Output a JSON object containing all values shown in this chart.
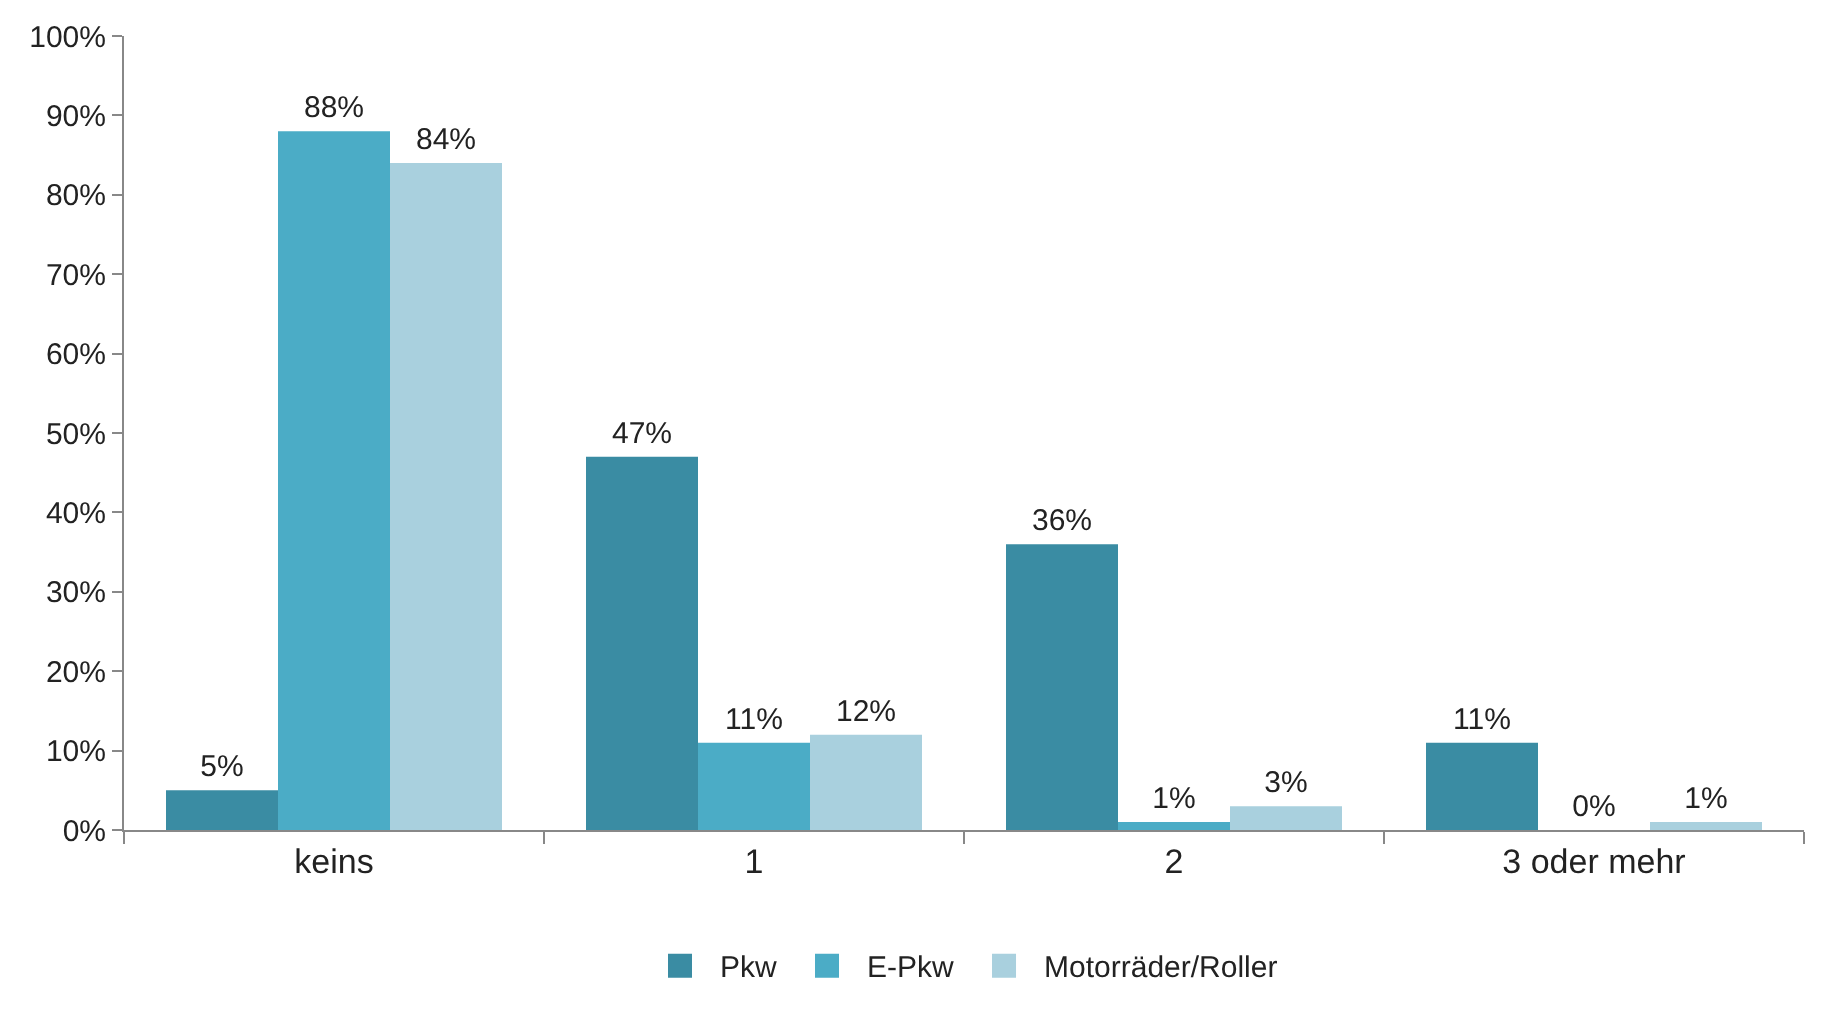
{
  "chart_data": {
    "type": "bar",
    "categories": [
      "keins",
      "1",
      "2",
      "3 oder mehr"
    ],
    "series": [
      {
        "name": "Pkw",
        "color": "#3a8ca3",
        "values": [
          5,
          47,
          36,
          11
        ],
        "value_labels": [
          "5%",
          "47%",
          "36%",
          "11%"
        ]
      },
      {
        "name": "E-Pkw",
        "color": "#4bacc6",
        "values": [
          88,
          11,
          1,
          0
        ],
        "value_labels": [
          "88%",
          "11%",
          "1%",
          "0%"
        ]
      },
      {
        "name": "Motorräder/Roller",
        "color": "#a9d0de",
        "values": [
          84,
          12,
          3,
          1
        ],
        "value_labels": [
          "84%",
          "12%",
          "3%",
          "1%"
        ]
      }
    ],
    "ylim": [
      0,
      100
    ],
    "yticks": [
      {
        "value": 0,
        "label": "0%"
      },
      {
        "value": 10,
        "label": "10%"
      },
      {
        "value": 20,
        "label": "20%"
      },
      {
        "value": 30,
        "label": "30%"
      },
      {
        "value": 40,
        "label": "40%"
      },
      {
        "value": 50,
        "label": "50%"
      },
      {
        "value": 60,
        "label": "60%"
      },
      {
        "value": 70,
        "label": "70%"
      },
      {
        "value": 80,
        "label": "80%"
      },
      {
        "value": 90,
        "label": "90%"
      },
      {
        "value": 100,
        "label": "100%"
      }
    ],
    "grid": false,
    "legend": "bottom"
  }
}
